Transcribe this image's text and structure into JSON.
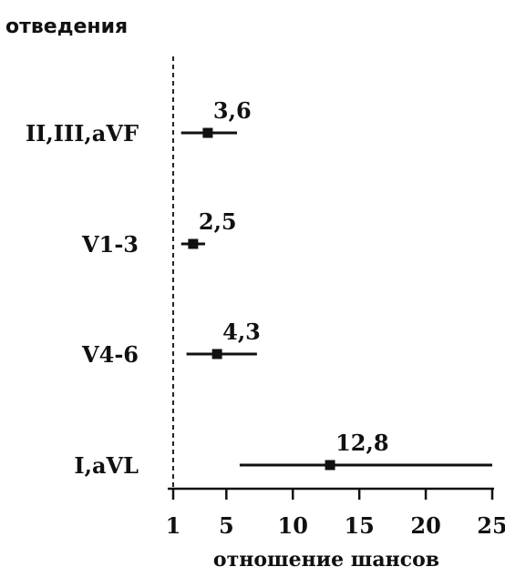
{
  "chart_data": {
    "type": "scatter",
    "subtype": "forest-plot",
    "ylabel": "отведения",
    "xlabel": "отношение шансов",
    "reference_line": 1,
    "xlim": [
      0,
      25
    ],
    "x_ticks": [
      1,
      5,
      10,
      15,
      20,
      25
    ],
    "x_tick_labels": [
      "1",
      "5",
      "10",
      "15",
      "20",
      "25"
    ],
    "categories": [
      "II,III,aVF",
      "V1-3",
      "V4-6",
      "I,aVL"
    ],
    "points": [
      {
        "category": "II,III,aVF",
        "value": 3.6,
        "ci_low": 1.6,
        "ci_high": 5.8,
        "label": "3,6"
      },
      {
        "category": "V1-3",
        "value": 2.5,
        "ci_low": 1.6,
        "ci_high": 3.4,
        "label": "2,5"
      },
      {
        "category": "V4-6",
        "value": 4.3,
        "ci_low": 2.0,
        "ci_high": 7.3,
        "label": "4,3"
      },
      {
        "category": "I,aVL",
        "value": 12.8,
        "ci_low": 6.0,
        "ci_high": 25.0,
        "label": "12,8"
      }
    ]
  }
}
